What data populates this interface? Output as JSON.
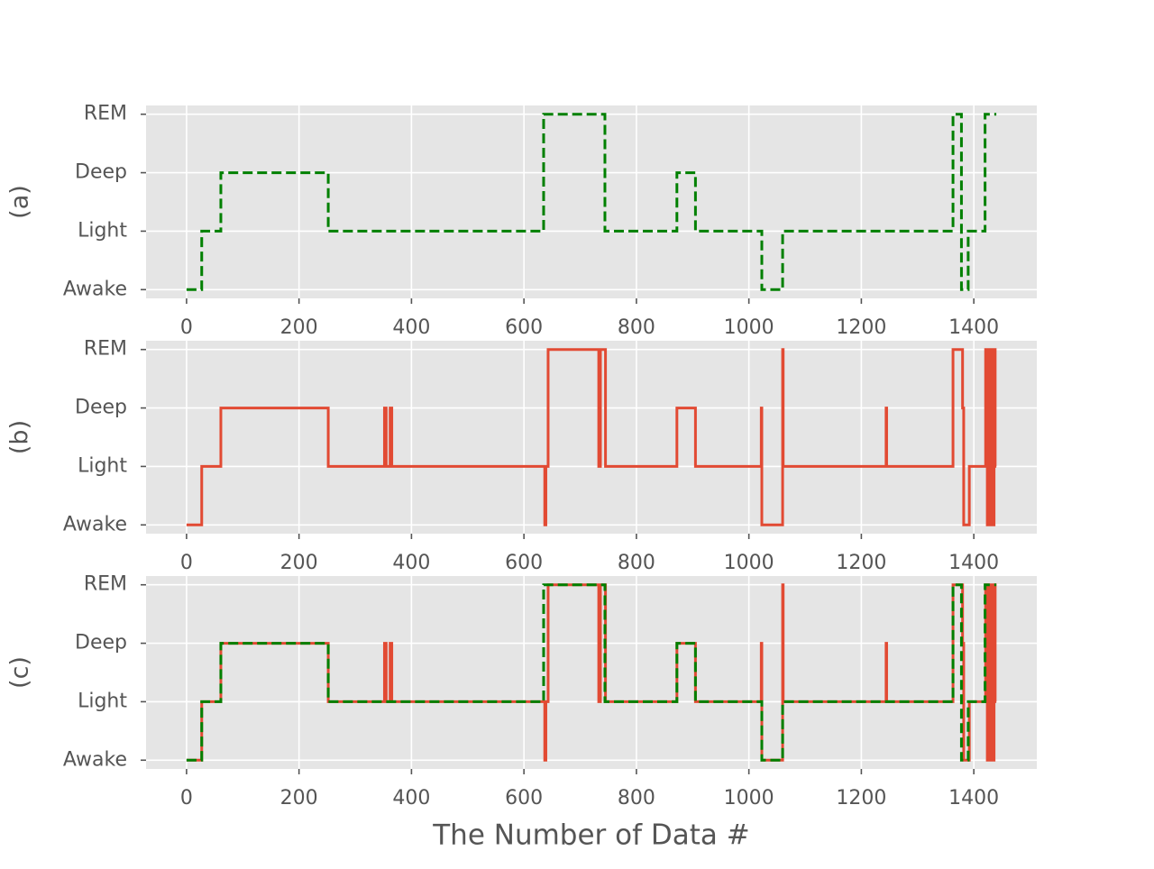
{
  "chart_data": [
    {
      "type": "line",
      "ylabel": "(a)",
      "xlim": [
        -72,
        1512
      ],
      "xticks": [
        0,
        200,
        400,
        600,
        800,
        1000,
        1200,
        1400
      ],
      "ylim": [
        -0.15,
        3.15
      ],
      "yticks": [
        {
          "value": 0,
          "label": "Awake"
        },
        {
          "value": 1,
          "label": "Light"
        },
        {
          "value": 2,
          "label": "Deep"
        },
        {
          "value": 3,
          "label": "REM"
        }
      ],
      "grid": true,
      "series": [
        {
          "color": "#008000",
          "linestyle": "dashed",
          "x": [
            0,
            27,
            27,
            61,
            61,
            252,
            252,
            635,
            635,
            744,
            744,
            872,
            872,
            905,
            905,
            1023,
            1023,
            1060,
            1060,
            1363,
            1363,
            1378,
            1378,
            1390,
            1390,
            1420,
            1420,
            1440
          ],
          "values": [
            0,
            0,
            1,
            1,
            2,
            2,
            1,
            1,
            3,
            3,
            1,
            1,
            2,
            2,
            1,
            1,
            0,
            0,
            1,
            1,
            3,
            3,
            0,
            0,
            1,
            1,
            3,
            3
          ]
        }
      ]
    },
    {
      "type": "line",
      "ylabel": "(b)",
      "xlim": [
        -72,
        1512
      ],
      "xticks": [
        0,
        200,
        400,
        600,
        800,
        1000,
        1200,
        1400
      ],
      "ylim": [
        -0.15,
        3.15
      ],
      "yticks": [
        {
          "value": 0,
          "label": "Awake"
        },
        {
          "value": 1,
          "label": "Light"
        },
        {
          "value": 2,
          "label": "Deep"
        },
        {
          "value": 3,
          "label": "REM"
        }
      ],
      "grid": true,
      "series": [
        {
          "color": "#E24A33",
          "linestyle": "solid",
          "x": [
            0,
            27,
            27,
            61,
            61,
            252,
            252,
            352,
            352,
            355,
            355,
            362,
            362,
            365,
            365,
            637,
            637,
            639,
            639,
            643,
            643,
            733,
            733,
            736,
            736,
            745,
            745,
            872,
            872,
            905,
            905,
            1022,
            1022,
            1023,
            1023,
            1060,
            1060,
            1061,
            1061,
            1244,
            1244,
            1245,
            1245,
            1363,
            1363,
            1380,
            1380,
            1382,
            1382,
            1392,
            1392,
            1421,
            1421,
            1424,
            1424,
            1426,
            1426,
            1429,
            1429,
            1431,
            1431,
            1434,
            1434,
            1436,
            1436,
            1438,
            1438,
            1440
          ],
          "values": [
            0,
            0,
            1,
            1,
            2,
            2,
            1,
            1,
            2,
            2,
            1,
            1,
            2,
            2,
            1,
            1,
            0,
            0,
            1,
            1,
            3,
            3,
            1,
            1,
            3,
            3,
            1,
            1,
            2,
            2,
            1,
            1,
            2,
            2,
            0,
            0,
            3,
            3,
            1,
            1,
            2,
            2,
            1,
            1,
            3,
            3,
            2,
            2,
            0,
            0,
            1,
            1,
            3,
            3,
            0,
            0,
            3,
            3,
            0,
            0,
            3,
            3,
            0,
            0,
            3,
            3,
            1,
            1
          ]
        }
      ]
    },
    {
      "type": "line",
      "ylabel": "(c)",
      "xlabel": "The Number of Data #",
      "xlim": [
        -72,
        1512
      ],
      "xticks": [
        0,
        200,
        400,
        600,
        800,
        1000,
        1200,
        1400
      ],
      "ylim": [
        -0.15,
        3.15
      ],
      "yticks": [
        {
          "value": 0,
          "label": "Awake"
        },
        {
          "value": 1,
          "label": "Light"
        },
        {
          "value": 2,
          "label": "Deep"
        },
        {
          "value": 3,
          "label": "REM"
        }
      ],
      "grid": true,
      "series": [
        {
          "color": "#E24A33",
          "linestyle": "solid",
          "x": [
            0,
            27,
            27,
            61,
            61,
            252,
            252,
            352,
            352,
            355,
            355,
            362,
            362,
            365,
            365,
            637,
            637,
            639,
            639,
            643,
            643,
            733,
            733,
            736,
            736,
            745,
            745,
            872,
            872,
            905,
            905,
            1022,
            1022,
            1023,
            1023,
            1060,
            1060,
            1061,
            1061,
            1244,
            1244,
            1245,
            1245,
            1363,
            1363,
            1380,
            1380,
            1382,
            1382,
            1392,
            1392,
            1421,
            1421,
            1424,
            1424,
            1426,
            1426,
            1429,
            1429,
            1431,
            1431,
            1434,
            1434,
            1436,
            1436,
            1438,
            1438,
            1440
          ],
          "values": [
            0,
            0,
            1,
            1,
            2,
            2,
            1,
            1,
            2,
            2,
            1,
            1,
            2,
            2,
            1,
            1,
            0,
            0,
            1,
            1,
            3,
            3,
            1,
            1,
            3,
            3,
            1,
            1,
            2,
            2,
            1,
            1,
            2,
            2,
            0,
            0,
            3,
            3,
            1,
            1,
            2,
            2,
            1,
            1,
            3,
            3,
            2,
            2,
            0,
            0,
            1,
            1,
            3,
            3,
            0,
            0,
            3,
            3,
            0,
            0,
            3,
            3,
            0,
            0,
            3,
            3,
            1,
            1
          ]
        },
        {
          "color": "#008000",
          "linestyle": "dashed",
          "x": [
            0,
            27,
            27,
            61,
            61,
            252,
            252,
            635,
            635,
            744,
            744,
            872,
            872,
            905,
            905,
            1023,
            1023,
            1060,
            1060,
            1363,
            1363,
            1378,
            1378,
            1390,
            1390,
            1420,
            1420,
            1440
          ],
          "values": [
            0,
            0,
            1,
            1,
            2,
            2,
            1,
            1,
            3,
            3,
            1,
            1,
            2,
            2,
            1,
            1,
            0,
            0,
            1,
            1,
            3,
            3,
            0,
            0,
            1,
            1,
            3,
            3
          ]
        }
      ]
    }
  ]
}
